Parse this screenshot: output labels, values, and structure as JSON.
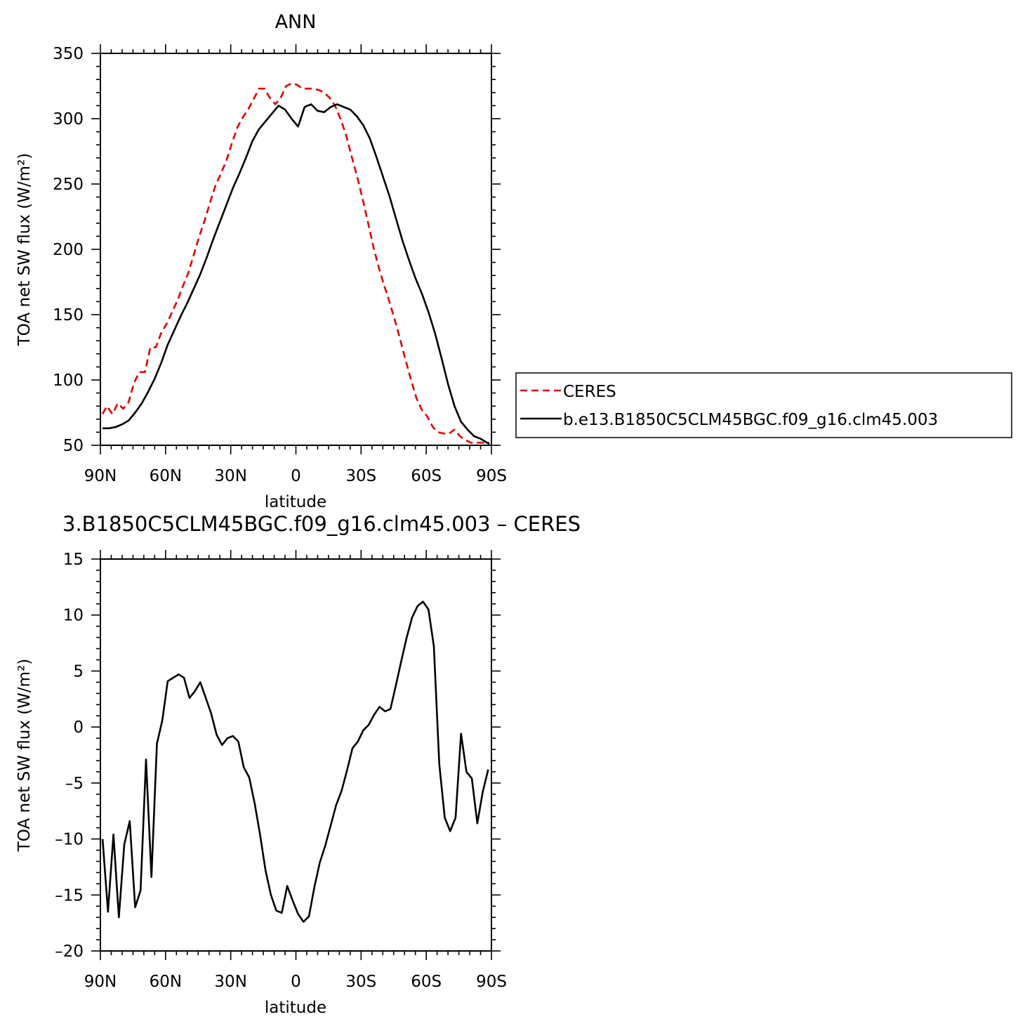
{
  "chart_data": [
    {
      "type": "line",
      "title": "ANN",
      "xlabel": "latitude",
      "ylabel": "TOA net SW flux (W/m²)",
      "xticks": [
        "90N",
        "60N",
        "30N",
        "0",
        "30S",
        "60S",
        "90S"
      ],
      "yticks": [
        "50",
        "100",
        "150",
        "200",
        "250",
        "300",
        "350"
      ],
      "xlim": [
        90,
        -90
      ],
      "ylim": [
        50,
        350
      ],
      "legend_position": "right",
      "series": [
        {
          "name": "CERES",
          "color": "#e00000",
          "dash": "dashed",
          "x": [
            89,
            87,
            84.5,
            82,
            79.5,
            77,
            74.5,
            72,
            69.5,
            67,
            64.5,
            62,
            59.5,
            57,
            54.5,
            52,
            49.5,
            47,
            44.5,
            42,
            39.5,
            37,
            34.5,
            32,
            29.5,
            27,
            24.5,
            22,
            19.5,
            17,
            14.5,
            12,
            9.5,
            7,
            4.5,
            2,
            -0.5,
            -3,
            -5.5,
            -8,
            -10.5,
            -13,
            -15.5,
            -18,
            -20.5,
            -23,
            -25.5,
            -28,
            -30.5,
            -33,
            -35.5,
            -38,
            -40.5,
            -43,
            -45.5,
            -48,
            -50.5,
            -53,
            -55.5,
            -58,
            -60.5,
            -63,
            -65.5,
            -68,
            -70.5,
            -73,
            -75.5,
            -78,
            -80.5,
            -83,
            -85.5,
            -88,
            -89
          ],
          "y": [
            74,
            80,
            74,
            82,
            78,
            83,
            98,
            106,
            106,
            125,
            125,
            136,
            143,
            152,
            161,
            172,
            182,
            196,
            210,
            222,
            236,
            249,
            258,
            268,
            281,
            293,
            301,
            307,
            315,
            323,
            323,
            316,
            311,
            316,
            325,
            327,
            326,
            323,
            323,
            323,
            322,
            320,
            316,
            310,
            300,
            288,
            272,
            257,
            240,
            222,
            203,
            187,
            173,
            160,
            146,
            131,
            115,
            100,
            86,
            77,
            72,
            64,
            60,
            59,
            59,
            62,
            57,
            54,
            52,
            52,
            52,
            52,
            52
          ]
        },
        {
          "name": "b.e13.B1850C5CLM45BGC.f09_g16.clm45.003",
          "color": "#000000",
          "dash": "solid",
          "x": [
            89,
            86,
            83,
            80,
            77,
            74,
            71,
            68,
            65,
            62,
            59,
            56,
            53,
            50,
            47,
            44,
            41,
            38,
            35,
            32,
            29,
            26,
            23,
            20,
            17,
            14,
            11,
            8,
            5,
            2,
            -1,
            -4,
            -7,
            -10,
            -13,
            -16,
            -19,
            -22,
            -25,
            -28,
            -31,
            -34,
            -37,
            -40,
            -43,
            -46,
            -49,
            -52,
            -55,
            -58,
            -61,
            -64,
            -67,
            -70,
            -73,
            -76,
            -79,
            -82,
            -85,
            -88,
            -89
          ],
          "y": [
            63,
            63,
            64,
            66,
            69,
            75,
            82,
            91,
            101,
            113,
            127,
            138,
            149,
            159,
            170,
            181,
            194,
            208,
            221,
            234,
            247,
            258,
            270,
            283,
            292,
            298,
            304,
            310,
            307,
            300,
            294,
            309,
            311,
            306,
            305,
            309,
            311,
            309,
            307,
            302,
            295,
            285,
            271,
            256,
            241,
            224,
            207,
            192,
            178,
            166,
            152,
            136,
            117,
            97,
            80,
            68,
            62,
            57,
            55,
            52,
            51
          ]
        }
      ]
    },
    {
      "type": "line",
      "title": "3.B1850C5CLM45BGC.f09_g16.clm45.003 – CERES",
      "xlabel": "latitude",
      "ylabel": "TOA net SW flux (W/m²)",
      "xticks": [
        "90N",
        "60N",
        "30N",
        "0",
        "30S",
        "60S",
        "90S"
      ],
      "yticks": [
        "15",
        "10",
        "5",
        "0",
        "–5",
        "–10",
        "–15",
        "–20"
      ],
      "xlim": [
        90,
        -90
      ],
      "ylim": [
        -20,
        15
      ],
      "series": [
        {
          "name": "",
          "color": "#000000",
          "dash": "solid",
          "x": [
            89,
            86.5,
            84,
            81.5,
            79,
            76.5,
            74,
            71.5,
            69,
            66.5,
            64,
            61.5,
            59,
            56.5,
            54,
            51.5,
            49,
            46.5,
            44,
            41.5,
            39,
            36.5,
            34,
            31.5,
            29,
            26.5,
            24,
            21.5,
            19,
            16.5,
            14,
            11.5,
            9,
            6.5,
            4,
            1.5,
            -1,
            -3.5,
            -6,
            -8.5,
            -11,
            -13.5,
            -16,
            -18.5,
            -21,
            -23.5,
            -26,
            -28.5,
            -31,
            -33.5,
            -36,
            -38.5,
            -41,
            -43.5,
            -46,
            -48.5,
            -51,
            -53.5,
            -56,
            -58.5,
            -61,
            -63.5,
            -66,
            -68.5,
            -71,
            -73.5,
            -76,
            -78.5,
            -81,
            -83.5,
            -86,
            -88.5
          ],
          "y": [
            -10,
            -16.5,
            -9.6,
            -17,
            -10.5,
            -8.4,
            -16.1,
            -14.6,
            -2.9,
            -13.4,
            -1.5,
            0.6,
            4.1,
            4.4,
            4.7,
            4.4,
            2.6,
            3.2,
            4.0,
            2.6,
            1.2,
            -0.7,
            -1.6,
            -1.0,
            -0.8,
            -1.3,
            -3.6,
            -4.5,
            -6.8,
            -9.6,
            -12.8,
            -15.0,
            -16.4,
            -16.6,
            -14.2,
            -15.5,
            -16.7,
            -17.4,
            -16.9,
            -14.3,
            -12.1,
            -10.6,
            -8.8,
            -7.0,
            -5.7,
            -3.9,
            -1.9,
            -1.3,
            -0.3,
            0.2,
            1.1,
            1.8,
            1.4,
            1.6,
            3.7,
            5.9,
            8.0,
            9.8,
            10.8,
            11.2,
            10.5,
            7.2,
            -3.3,
            -8.1,
            -9.3,
            -8.1,
            -0.6,
            -4.0,
            -4.6,
            -8.6,
            -5.8,
            -3.8
          ]
        }
      ]
    }
  ]
}
